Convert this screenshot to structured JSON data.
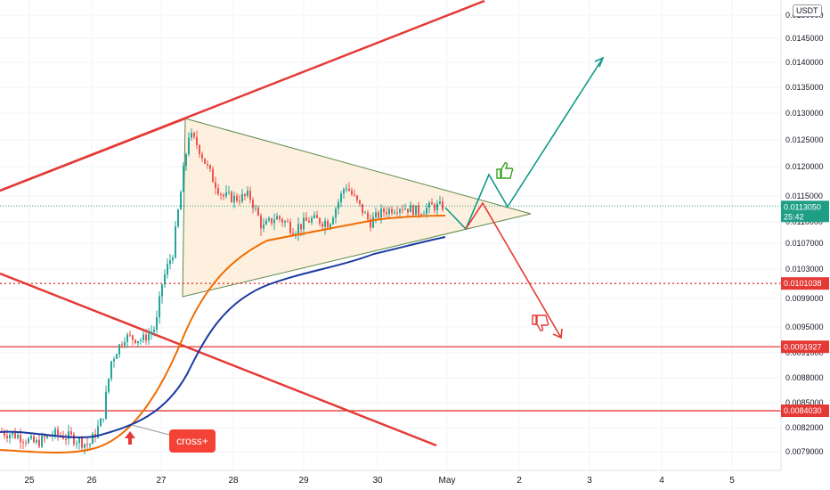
{
  "chart_data": {
    "type": "candlestick",
    "quote_currency": "USDT",
    "x_tick_labels": [
      "25",
      "26",
      "27",
      "28",
      "29",
      "30",
      "May",
      "2",
      "3",
      "4",
      "5"
    ],
    "y_tick_labels": [
      "0.0150000",
      "0.0145000",
      "0.0140000",
      "0.0135000",
      "0.0130000",
      "0.0125000",
      "0.0120000",
      "0.0115000",
      "0.0110000",
      "0.0107000",
      "0.0103000",
      "0.0099000",
      "0.0095000",
      "0.0091000",
      "0.0088000",
      "0.0085000",
      "0.0082000",
      "0.0079000"
    ],
    "y_tick_values": [
      0.015,
      0.0145,
      0.014,
      0.0135,
      0.013,
      0.0125,
      0.012,
      0.0115,
      0.011,
      0.0107,
      0.0103,
      0.0099,
      0.0095,
      0.0091,
      0.0088,
      0.0085,
      0.0082,
      0.0079
    ],
    "current_price": {
      "label": "0.0113050",
      "countdown": "25:42",
      "value": 0.011305
    },
    "levels": [
      {
        "label": "0.0101038",
        "value": 0.0101038,
        "style": "dotted"
      },
      {
        "label": "0.0091927",
        "value": 0.0091927,
        "style": "solid"
      },
      {
        "label": "0.0084030",
        "value": 0.008403,
        "style": "solid"
      }
    ],
    "annotations": {
      "cross_label": "cross+"
    },
    "colors": {
      "up": "#26a69a",
      "down": "#ef5350",
      "trendline": "#e53935",
      "ma_fast": "#ef6c00",
      "ma_slow": "#1a3aa0",
      "projection_up": "#0e9a8a",
      "projection_down": "#e53935",
      "triangle_fill": "#fdebd3",
      "triangle_edge": "#5a8a4a",
      "current_badge": "#1f9e86",
      "level_badge": "#e53935"
    }
  }
}
